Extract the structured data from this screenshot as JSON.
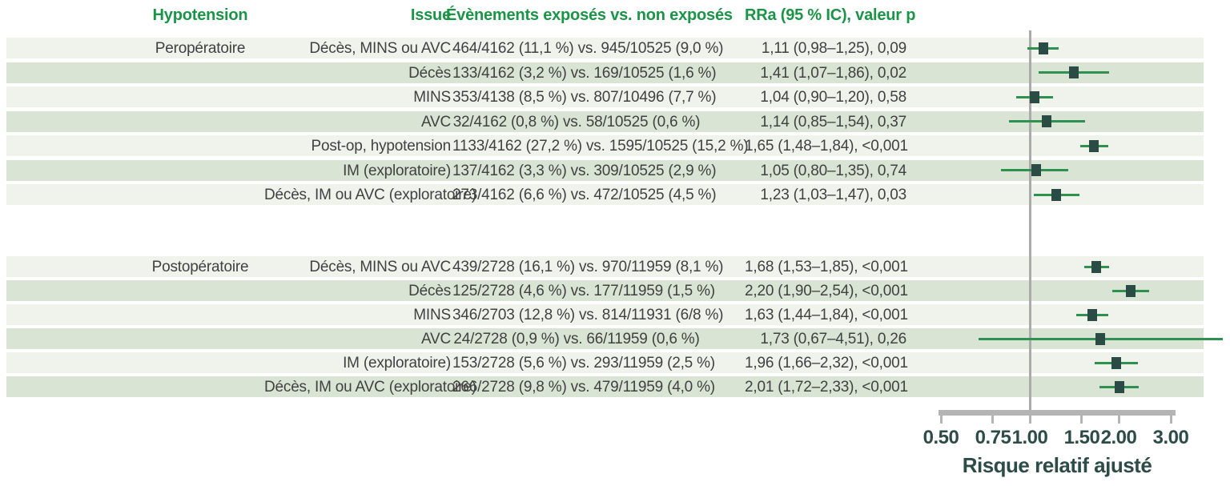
{
  "header": {
    "col_hypotension": "Hypotension",
    "col_issue": "Issue",
    "col_events": "Évènements exposés vs. non exposés",
    "col_rra": "RRa (95 % IC), valeur p"
  },
  "colors": {
    "header_green": "#1b9447",
    "band_light": "#f0f3ec",
    "band_dark": "#d9e4d4",
    "body_text": "#414141",
    "marker_teal": "#2b4b45",
    "ci_green": "#2e9150",
    "axis_text": "#2d4c48",
    "reference_gray": "#ababab"
  },
  "chart_data": {
    "type": "forest",
    "xscale": "log",
    "xlim": [
      0.5,
      3.0
    ],
    "x_ticks": [
      0.5,
      0.75,
      1.0,
      1.5,
      2.0,
      3.0
    ],
    "x_tick_labels": [
      "0.50",
      "0.75",
      "1.00",
      "1.50",
      "2.00",
      "3.00"
    ],
    "xlabel": "Risque relatif ajusté",
    "reference_line": 1.0,
    "groups": [
      {
        "label": "Peropératoire",
        "rows": [
          {
            "issue": "Décès, MINS ou AVC",
            "events": "464/4162 (11,1 %) vs. 945/10525 (9,0 %)",
            "rra_label": "1,11 (0,98–1,25), 0,09",
            "rr": 1.11,
            "ci_low": 0.98,
            "ci_high": 1.25,
            "p": "0,09"
          },
          {
            "issue": "Décès",
            "events": "133/4162 (3,2 %) vs. 169/10525 (1,6 %)",
            "rra_label": "1,41 (1,07–1,86), 0,02",
            "rr": 1.41,
            "ci_low": 1.07,
            "ci_high": 1.86,
            "p": "0,02"
          },
          {
            "issue": "MINS",
            "events": "353/4138 (8,5 %) vs. 807/10496 (7,7 %)",
            "rra_label": "1,04 (0,90–1,20), 0,58",
            "rr": 1.04,
            "ci_low": 0.9,
            "ci_high": 1.2,
            "p": "0,58"
          },
          {
            "issue": "AVC",
            "events": "32/4162 (0,8 %) vs. 58/10525 (0,6 %)",
            "rra_label": "1,14 (0,85–1,54), 0,37",
            "rr": 1.14,
            "ci_low": 0.85,
            "ci_high": 1.54,
            "p": "0,37"
          },
          {
            "issue": "Post-op, hypotension",
            "events": "1133/4162 (27,2 %) vs. 1595/10525 (15,2 %)",
            "rra_label": "1,65 (1,48–1,84), <0,001",
            "rr": 1.65,
            "ci_low": 1.48,
            "ci_high": 1.84,
            "p": "<0,001"
          },
          {
            "issue": "IM (exploratoire)",
            "events": "137/4162 (3,3 %) vs. 309/10525 (2,9 %)",
            "rra_label": "1,05 (0,80–1,35), 0,74",
            "rr": 1.05,
            "ci_low": 0.8,
            "ci_high": 1.35,
            "p": "0,74"
          },
          {
            "issue": "Décès, IM ou AVC (exploratoire)",
            "events": "273/4162 (6,6 %) vs. 472/10525 (4,5 %)",
            "rra_label": "1,23 (1,03–1,47), 0,03",
            "rr": 1.23,
            "ci_low": 1.03,
            "ci_high": 1.47,
            "p": "0,03"
          }
        ]
      },
      {
        "label": "Postopératoire",
        "rows": [
          {
            "issue": "Décès, MINS ou AVC",
            "events": "439/2728 (16,1 %) vs. 970/11959 (8,1 %)",
            "rra_label": "1,68 (1,53–1,85), <0,001",
            "rr": 1.68,
            "ci_low": 1.53,
            "ci_high": 1.85,
            "p": "<0,001"
          },
          {
            "issue": "Décès",
            "events": "125/2728 (4,6 %) vs. 177/11959 (1,5 %)",
            "rra_label": "2,20 (1,90–2,54), <0,001",
            "rr": 2.2,
            "ci_low": 1.9,
            "ci_high": 2.54,
            "p": "<0,001"
          },
          {
            "issue": "MINS",
            "events": "346/2703 (12,8 %) vs. 814/11931 (6/8 %)",
            "rra_label": "1,63 (1,44–1,84), <0,001",
            "rr": 1.63,
            "ci_low": 1.44,
            "ci_high": 1.84,
            "p": "<0,001"
          },
          {
            "issue": "AVC",
            "events": "24/2728 (0,9 %) vs. 66/11959 (0,6 %)",
            "rra_label": "1,73 (0,67–4,51), 0,26",
            "rr": 1.73,
            "ci_low": 0.67,
            "ci_high": 4.51,
            "p": "0,26"
          },
          {
            "issue": "IM (exploratoire)",
            "events": "153/2728 (5,6 %) vs. 293/11959 (2,5 %)",
            "rra_label": "1,96 (1,66–2,32), <0,001",
            "rr": 1.96,
            "ci_low": 1.66,
            "ci_high": 2.32,
            "p": "<0,001"
          },
          {
            "issue": "Décès, IM ou AVC (exploratoire)",
            "events": "266/2728 (9,8 %) vs. 479/11959 (4,0 %)",
            "rra_label": "2,01 (1,72–2,33), <0,001",
            "rr": 2.01,
            "ci_low": 1.72,
            "ci_high": 2.33,
            "p": "<0,001"
          }
        ]
      }
    ]
  }
}
